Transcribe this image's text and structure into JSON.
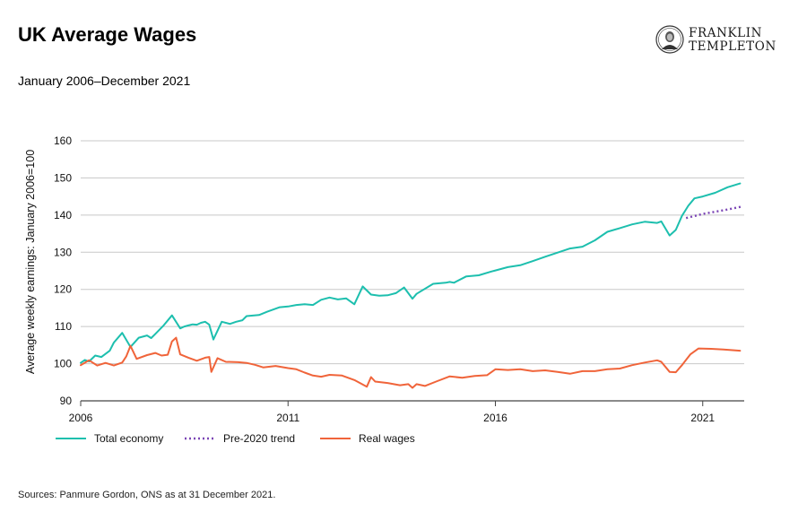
{
  "header": {
    "title": "UK Average Wages",
    "subtitle": "January 2006–December 2021"
  },
  "brand": {
    "line1": "FRANKLIN",
    "line2": "TEMPLETON",
    "logo_icon": "franklin-portrait-seal"
  },
  "footer": {
    "source": "Sources: Panmure Gordon, ONS as at 31 December 2021."
  },
  "colors": {
    "total_economy": "#1dbfae",
    "pre_2020_trend": "#7b45b5",
    "real_wages": "#f0643a",
    "grid": "#c8c8c8",
    "axis": "#444444"
  },
  "chart_data": {
    "type": "line",
    "title": "UK Average Wages",
    "subtitle": "January 2006–December 2021",
    "ylabel": "Average weekly earnings: January 2006=100",
    "xlabel": "",
    "ylim": [
      90,
      160
    ],
    "yticks": [
      90,
      100,
      110,
      120,
      130,
      140,
      150,
      160
    ],
    "xlim": [
      2006.0,
      2022.0
    ],
    "xticks": [
      2006,
      2011,
      2016,
      2021
    ],
    "grid": "horizontal",
    "legend_position": "bottom-left",
    "series": [
      {
        "name": "Total economy",
        "style": "solid",
        "color": "#1dbfae",
        "x": [
          2006.0,
          2006.1,
          2006.2,
          2006.35,
          2006.5,
          2006.7,
          2006.8,
          2007.0,
          2007.2,
          2007.4,
          2007.6,
          2007.7,
          2007.8,
          2008.0,
          2008.2,
          2008.4,
          2008.5,
          2008.6,
          2008.7,
          2008.8,
          2008.9,
          2009.0,
          2009.1,
          2009.2,
          2009.4,
          2009.6,
          2009.75,
          2009.9,
          2010.0,
          2010.3,
          2010.5,
          2010.8,
          2011.0,
          2011.2,
          2011.4,
          2011.6,
          2011.8,
          2012.0,
          2012.2,
          2012.4,
          2012.6,
          2012.8,
          2013.0,
          2013.2,
          2013.4,
          2013.6,
          2013.8,
          2014.0,
          2014.1,
          2014.2,
          2014.5,
          2014.8,
          2014.9,
          2015.0,
          2015.3,
          2015.6,
          2015.9,
          2016.0,
          2016.3,
          2016.6,
          2016.9,
          2017.2,
          2017.5,
          2017.8,
          2018.1,
          2018.4,
          2018.7,
          2019.0,
          2019.3,
          2019.6,
          2019.9,
          2020.0,
          2020.2,
          2020.35,
          2020.5,
          2020.65,
          2020.8,
          2021.0,
          2021.3,
          2021.6,
          2021.9
        ],
        "y": [
          100.2,
          101.0,
          100.6,
          102.2,
          101.8,
          103.5,
          105.7,
          108.3,
          104.5,
          107.0,
          107.6,
          106.9,
          108.0,
          110.3,
          113.0,
          109.5,
          110.0,
          110.3,
          110.6,
          110.5,
          111.0,
          111.3,
          110.5,
          106.5,
          111.3,
          110.7,
          111.3,
          111.7,
          112.8,
          113.1,
          114.0,
          115.2,
          115.4,
          115.8,
          116.0,
          115.8,
          117.2,
          117.8,
          117.3,
          117.6,
          116.0,
          120.8,
          118.6,
          118.3,
          118.4,
          119.0,
          120.5,
          117.5,
          118.8,
          119.5,
          121.5,
          121.8,
          122.0,
          121.8,
          123.5,
          123.8,
          124.8,
          125.1,
          126.0,
          126.5,
          127.6,
          128.8,
          129.9,
          131.0,
          131.5,
          133.2,
          135.5,
          136.5,
          137.5,
          138.2,
          137.9,
          138.3,
          134.5,
          136.0,
          139.8,
          142.5,
          144.5,
          145.0,
          146.0,
          147.5,
          148.5
        ]
      },
      {
        "name": "Pre-2020 trend",
        "style": "dotted",
        "color": "#7b45b5",
        "x": [
          2020.6,
          2021.0,
          2021.5,
          2021.95
        ],
        "y": [
          139.2,
          140.3,
          141.3,
          142.3
        ]
      },
      {
        "name": "Real wages",
        "style": "solid",
        "color": "#f0643a",
        "x": [
          2006.0,
          2006.2,
          2006.4,
          2006.6,
          2006.8,
          2007.0,
          2007.1,
          2007.2,
          2007.35,
          2007.6,
          2007.8,
          2007.95,
          2008.1,
          2008.2,
          2008.3,
          2008.4,
          2008.6,
          2008.8,
          2009.0,
          2009.1,
          2009.15,
          2009.3,
          2009.5,
          2009.8,
          2010.0,
          2010.2,
          2010.4,
          2010.7,
          2011.0,
          2011.2,
          2011.4,
          2011.6,
          2011.8,
          2012.0,
          2012.3,
          2012.6,
          2012.9,
          2013.0,
          2013.1,
          2013.4,
          2013.7,
          2013.9,
          2014.0,
          2014.1,
          2014.3,
          2014.6,
          2014.9,
          2015.2,
          2015.5,
          2015.8,
          2016.0,
          2016.3,
          2016.6,
          2016.9,
          2017.2,
          2017.5,
          2017.8,
          2018.1,
          2018.4,
          2018.7,
          2019.0,
          2019.3,
          2019.6,
          2019.9,
          2020.0,
          2020.2,
          2020.35,
          2020.5,
          2020.7,
          2020.9,
          2021.2,
          2021.5,
          2021.9
        ],
        "y": [
          99.6,
          100.9,
          99.5,
          100.2,
          99.5,
          100.3,
          102.0,
          104.8,
          101.3,
          102.3,
          102.9,
          102.2,
          102.4,
          106.0,
          107.0,
          102.5,
          101.6,
          100.8,
          101.6,
          101.8,
          97.8,
          101.5,
          100.5,
          100.4,
          100.2,
          99.7,
          99.0,
          99.4,
          98.8,
          98.5,
          97.6,
          96.8,
          96.5,
          97.0,
          96.8,
          95.6,
          93.8,
          96.4,
          95.2,
          94.8,
          94.2,
          94.5,
          93.5,
          94.5,
          94.0,
          95.3,
          96.6,
          96.2,
          96.7,
          96.9,
          98.5,
          98.3,
          98.5,
          98.0,
          98.2,
          97.8,
          97.3,
          98.0,
          98.0,
          98.5,
          98.7,
          99.6,
          100.3,
          100.9,
          100.5,
          97.8,
          97.7,
          99.6,
          102.5,
          104.1,
          104.0,
          103.8,
          103.5
        ]
      }
    ]
  }
}
